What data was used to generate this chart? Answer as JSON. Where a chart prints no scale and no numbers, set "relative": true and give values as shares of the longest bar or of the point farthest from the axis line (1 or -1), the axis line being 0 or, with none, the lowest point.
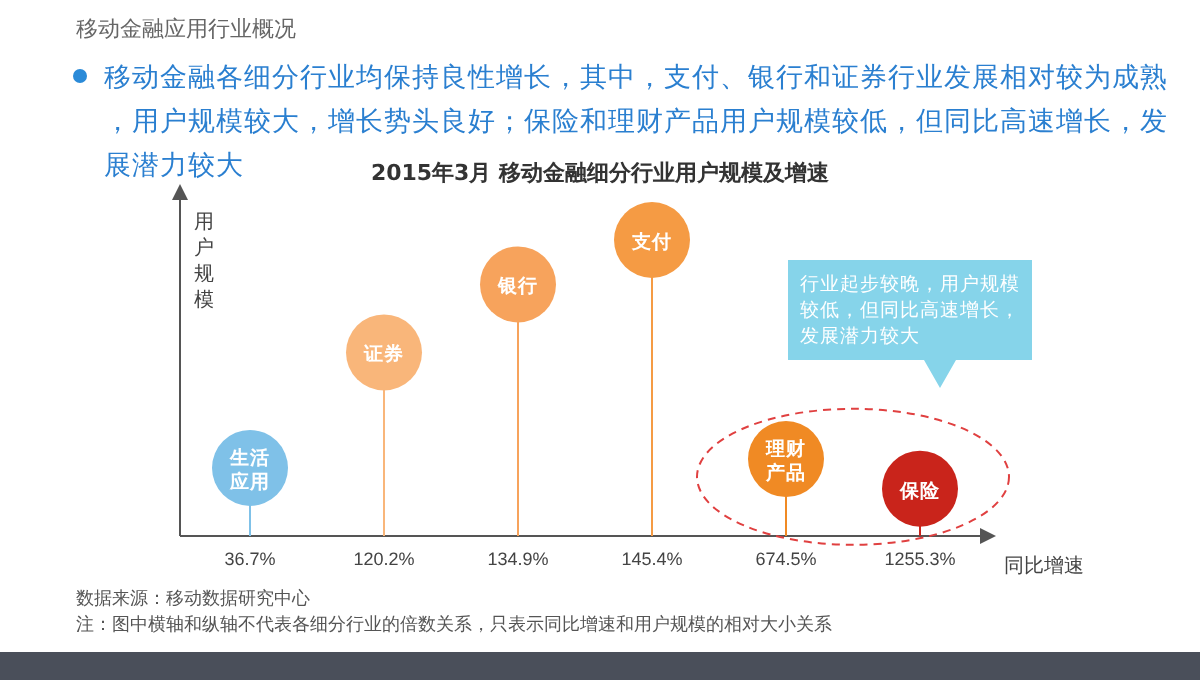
{
  "chart_data": {
    "type": "lollipop",
    "title": "2015年3月 移动金融细分行业用户规模及增速",
    "xlabel": "同比增速",
    "ylabel": "用户规模",
    "relative": true,
    "categories": [
      "36.7%",
      "120.2%",
      "134.9%",
      "145.4%",
      "674.5%",
      "1255.3%"
    ],
    "values": [
      0.23,
      0.62,
      0.85,
      1,
      0.26,
      0.16
    ],
    "colors": [
      "#7fc1e8",
      "#f9b67a",
      "#f7a35c",
      "#f59b44",
      "#f08a24",
      "#c9241b"
    ],
    "annotations": [
      "移动金融应用行业概况",
      "移动金融各细分行业均保持良性增长，其中，支付、银行和证券行业发展相对较为成熟，用户规模较大，增长势头良好；保险和理财产品用户规模较低，但同比高速增长，发展潜力较大",
      "行业起步较晚，用户规模较低，但同比高速增长，发展潜力较大",
      "数据来源：移动数据研究中心",
      "注：图中横轴和纵轴不代表各细分行业的倍数关系，只表示同比增速和用户规模的相对大小关系",
      {
        "text": "生活应用",
        "x": "36.7%",
        "y": 0.23
      },
      {
        "text": "证券",
        "x": "120.2%",
        "y": 0.62
      },
      {
        "text": "银行",
        "x": "134.9%",
        "y": 0.85
      },
      {
        "text": "支付",
        "x": "145.4%",
        "y": 1
      },
      {
        "text": "理财产品",
        "x": "674.5%",
        "y": 0.26
      },
      {
        "text": "保险",
        "x": "1255.3%",
        "y": 0.16
      }
    ]
  }
}
